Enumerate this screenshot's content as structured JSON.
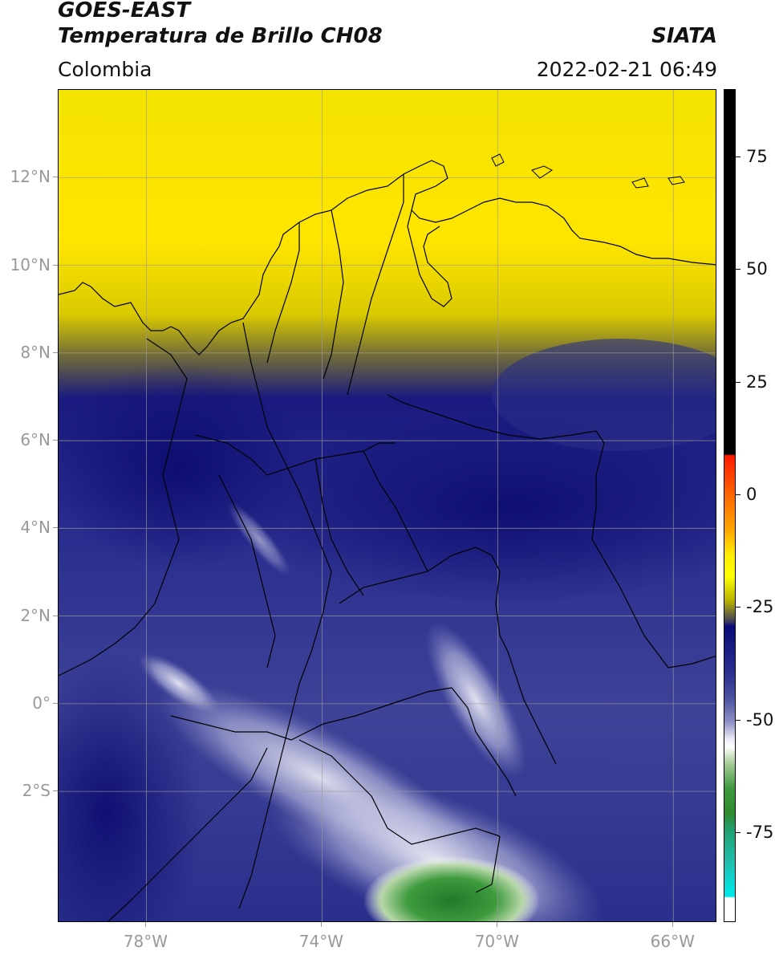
{
  "header": {
    "satellite": "GOES-EAST",
    "product": "Temperatura de Brillo CH08",
    "institution": "SIATA",
    "region": "Colombia",
    "timestamp": "2022-02-21 06:49"
  },
  "map": {
    "lon_range": [
      -80,
      -65
    ],
    "lat_range": [
      -5,
      14
    ],
    "lat_ticks": [
      {
        "lat": 12,
        "label": "12°N"
      },
      {
        "lat": 10,
        "label": "10°N"
      },
      {
        "lat": 8,
        "label": "8°N"
      },
      {
        "lat": 6,
        "label": "6°N"
      },
      {
        "lat": 4,
        "label": "4°N"
      },
      {
        "lat": 2,
        "label": "2°N"
      },
      {
        "lat": 0,
        "label": "0°"
      },
      {
        "lat": -2,
        "label": "2°S"
      }
    ],
    "lon_ticks": [
      {
        "lon": -78,
        "label": "78°W"
      },
      {
        "lon": -74,
        "label": "74°W"
      },
      {
        "lon": -70,
        "label": "70°W"
      },
      {
        "lon": -66,
        "label": "66°W"
      }
    ],
    "gridlines": true
  },
  "colorbar": {
    "range": [
      -95,
      90
    ],
    "ticks": [
      {
        "value": 75,
        "label": "75"
      },
      {
        "value": 50,
        "label": "50"
      },
      {
        "value": 25,
        "label": "25"
      },
      {
        "value": 0,
        "label": "0"
      },
      {
        "value": -25,
        "label": "-25"
      },
      {
        "value": -50,
        "label": "-50"
      },
      {
        "value": -75,
        "label": "-75"
      }
    ],
    "colors": {
      "black": "#000000",
      "red": "#ff1a00",
      "orange": "#ff8c00",
      "yellow": "#ffff00",
      "olive": "#8c8c3c",
      "navy": "#0a0a7a",
      "blue": "#4a4fa0",
      "lavender": "#c8c8e6",
      "white": "#ffffff",
      "green": "#2e8b2e",
      "teal": "#20b2aa",
      "cyan": "#00e5e5"
    }
  }
}
